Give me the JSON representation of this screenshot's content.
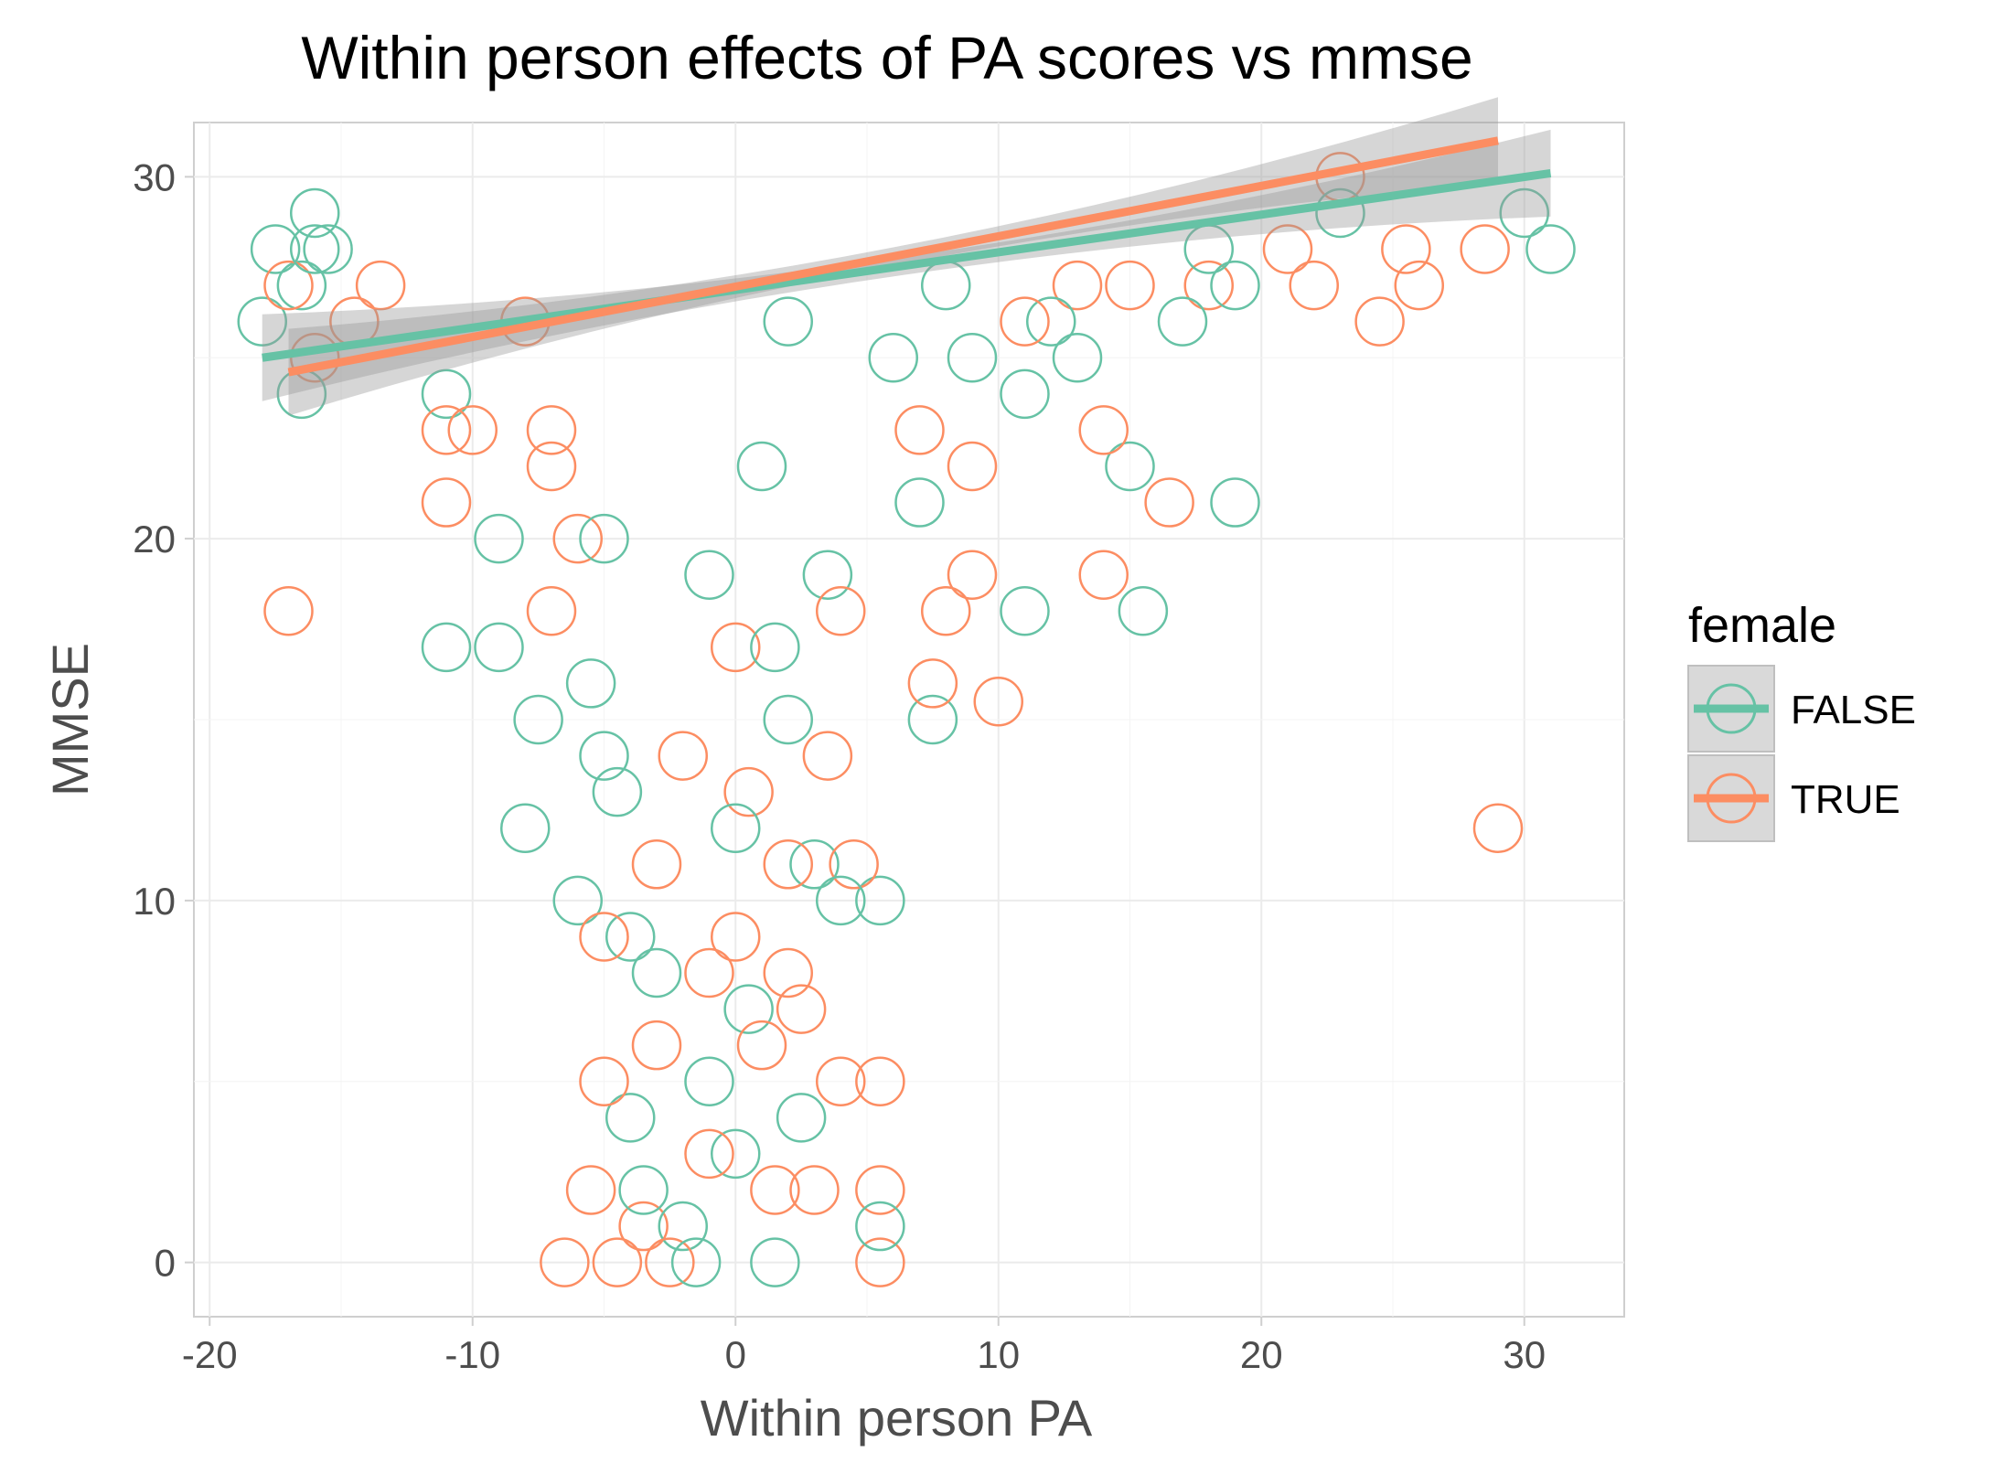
{
  "chart_data": {
    "type": "scatter",
    "title": "Within person effects of PA scores vs mmse",
    "xlabel": "Within person PA",
    "ylabel": "MMSE",
    "xlim": [
      -20.6,
      33.8
    ],
    "ylim": [
      -1.5,
      31.5
    ],
    "x_ticks": [
      -20,
      -10,
      0,
      10,
      20,
      30
    ],
    "x_tick_labels": [
      "-20",
      "-10",
      "0",
      "10",
      "20",
      "30"
    ],
    "y_ticks": [
      0,
      10,
      20,
      30
    ],
    "y_tick_labels": [
      "0",
      "10",
      "20",
      "30"
    ],
    "grid": true,
    "legend": {
      "title": "female",
      "position": "right"
    },
    "series": [
      {
        "name": "FALSE",
        "color": "#66c2a5",
        "trend": {
          "x": [
            -18,
            31
          ],
          "y": [
            25.0,
            30.1
          ]
        },
        "points": [
          [
            -18,
            26
          ],
          [
            -17.5,
            28
          ],
          [
            -16.5,
            24
          ],
          [
            -16.5,
            27
          ],
          [
            -16,
            28
          ],
          [
            -16,
            29
          ],
          [
            -15.5,
            28
          ],
          [
            -11,
            24
          ],
          [
            -11,
            17
          ],
          [
            -9,
            20
          ],
          [
            -9,
            17
          ],
          [
            -8,
            12
          ],
          [
            -7.5,
            15
          ],
          [
            -6,
            10
          ],
          [
            -5.5,
            16
          ],
          [
            -5,
            14
          ],
          [
            -5,
            20
          ],
          [
            -4.5,
            13
          ],
          [
            -4,
            9
          ],
          [
            -4,
            4
          ],
          [
            -3.5,
            2
          ],
          [
            -3,
            8
          ],
          [
            -2,
            1
          ],
          [
            -1.5,
            0
          ],
          [
            -1,
            5
          ],
          [
            -1,
            19
          ],
          [
            0,
            12
          ],
          [
            0,
            3
          ],
          [
            0.5,
            7
          ],
          [
            1,
            22
          ],
          [
            1.5,
            17
          ],
          [
            1.5,
            0
          ],
          [
            2,
            15
          ],
          [
            2,
            26
          ],
          [
            2.5,
            4
          ],
          [
            3,
            11
          ],
          [
            3.5,
            19
          ],
          [
            4,
            10
          ],
          [
            5.5,
            10
          ],
          [
            5.5,
            1
          ],
          [
            6,
            25
          ],
          [
            7,
            21
          ],
          [
            7.5,
            15
          ],
          [
            8,
            27
          ],
          [
            9,
            25
          ],
          [
            11,
            18
          ],
          [
            11,
            24
          ],
          [
            12,
            26
          ],
          [
            13,
            25
          ],
          [
            15,
            22
          ],
          [
            15.5,
            18
          ],
          [
            17,
            26
          ],
          [
            18,
            28
          ],
          [
            19,
            27
          ],
          [
            19,
            21
          ],
          [
            23,
            29
          ],
          [
            30,
            29
          ],
          [
            31,
            28
          ]
        ]
      },
      {
        "name": "TRUE",
        "color": "#fc8d62",
        "trend": {
          "x": [
            -17,
            29
          ],
          "y": [
            24.6,
            31.0
          ]
        },
        "points": [
          [
            -17,
            27
          ],
          [
            -17,
            18
          ],
          [
            -16,
            25
          ],
          [
            -14.5,
            26
          ],
          [
            -13.5,
            27
          ],
          [
            -11,
            21
          ],
          [
            -11,
            23
          ],
          [
            -10,
            23
          ],
          [
            -8,
            26
          ],
          [
            -7,
            23
          ],
          [
            -7,
            22
          ],
          [
            -7,
            18
          ],
          [
            -6.5,
            0
          ],
          [
            -6,
            20
          ],
          [
            -5.5,
            2
          ],
          [
            -5,
            9
          ],
          [
            -5,
            5
          ],
          [
            -4.5,
            0
          ],
          [
            -3.5,
            1
          ],
          [
            -3,
            6
          ],
          [
            -3,
            11
          ],
          [
            -2.5,
            0
          ],
          [
            -2,
            14
          ],
          [
            -1,
            8
          ],
          [
            -1,
            3
          ],
          [
            0,
            17
          ],
          [
            0,
            9
          ],
          [
            0.5,
            13
          ],
          [
            1,
            6
          ],
          [
            1.5,
            2
          ],
          [
            2,
            8
          ],
          [
            2,
            11
          ],
          [
            2.5,
            7
          ],
          [
            3,
            2
          ],
          [
            3.5,
            14
          ],
          [
            4,
            5
          ],
          [
            4,
            18
          ],
          [
            4.5,
            11
          ],
          [
            5.5,
            5
          ],
          [
            5.5,
            2
          ],
          [
            5.5,
            0
          ],
          [
            7,
            23
          ],
          [
            7.5,
            16
          ],
          [
            8,
            18
          ],
          [
            9,
            22
          ],
          [
            9,
            19
          ],
          [
            10,
            15.5
          ],
          [
            11,
            26
          ],
          [
            13,
            27
          ],
          [
            14,
            23
          ],
          [
            14,
            19
          ],
          [
            15,
            27
          ],
          [
            16.5,
            21
          ],
          [
            18,
            27
          ],
          [
            21,
            28
          ],
          [
            22,
            27
          ],
          [
            23,
            30
          ],
          [
            24.5,
            26
          ],
          [
            25.5,
            28
          ],
          [
            26,
            27
          ],
          [
            29,
            12
          ],
          [
            28.5,
            28
          ]
        ]
      }
    ]
  }
}
